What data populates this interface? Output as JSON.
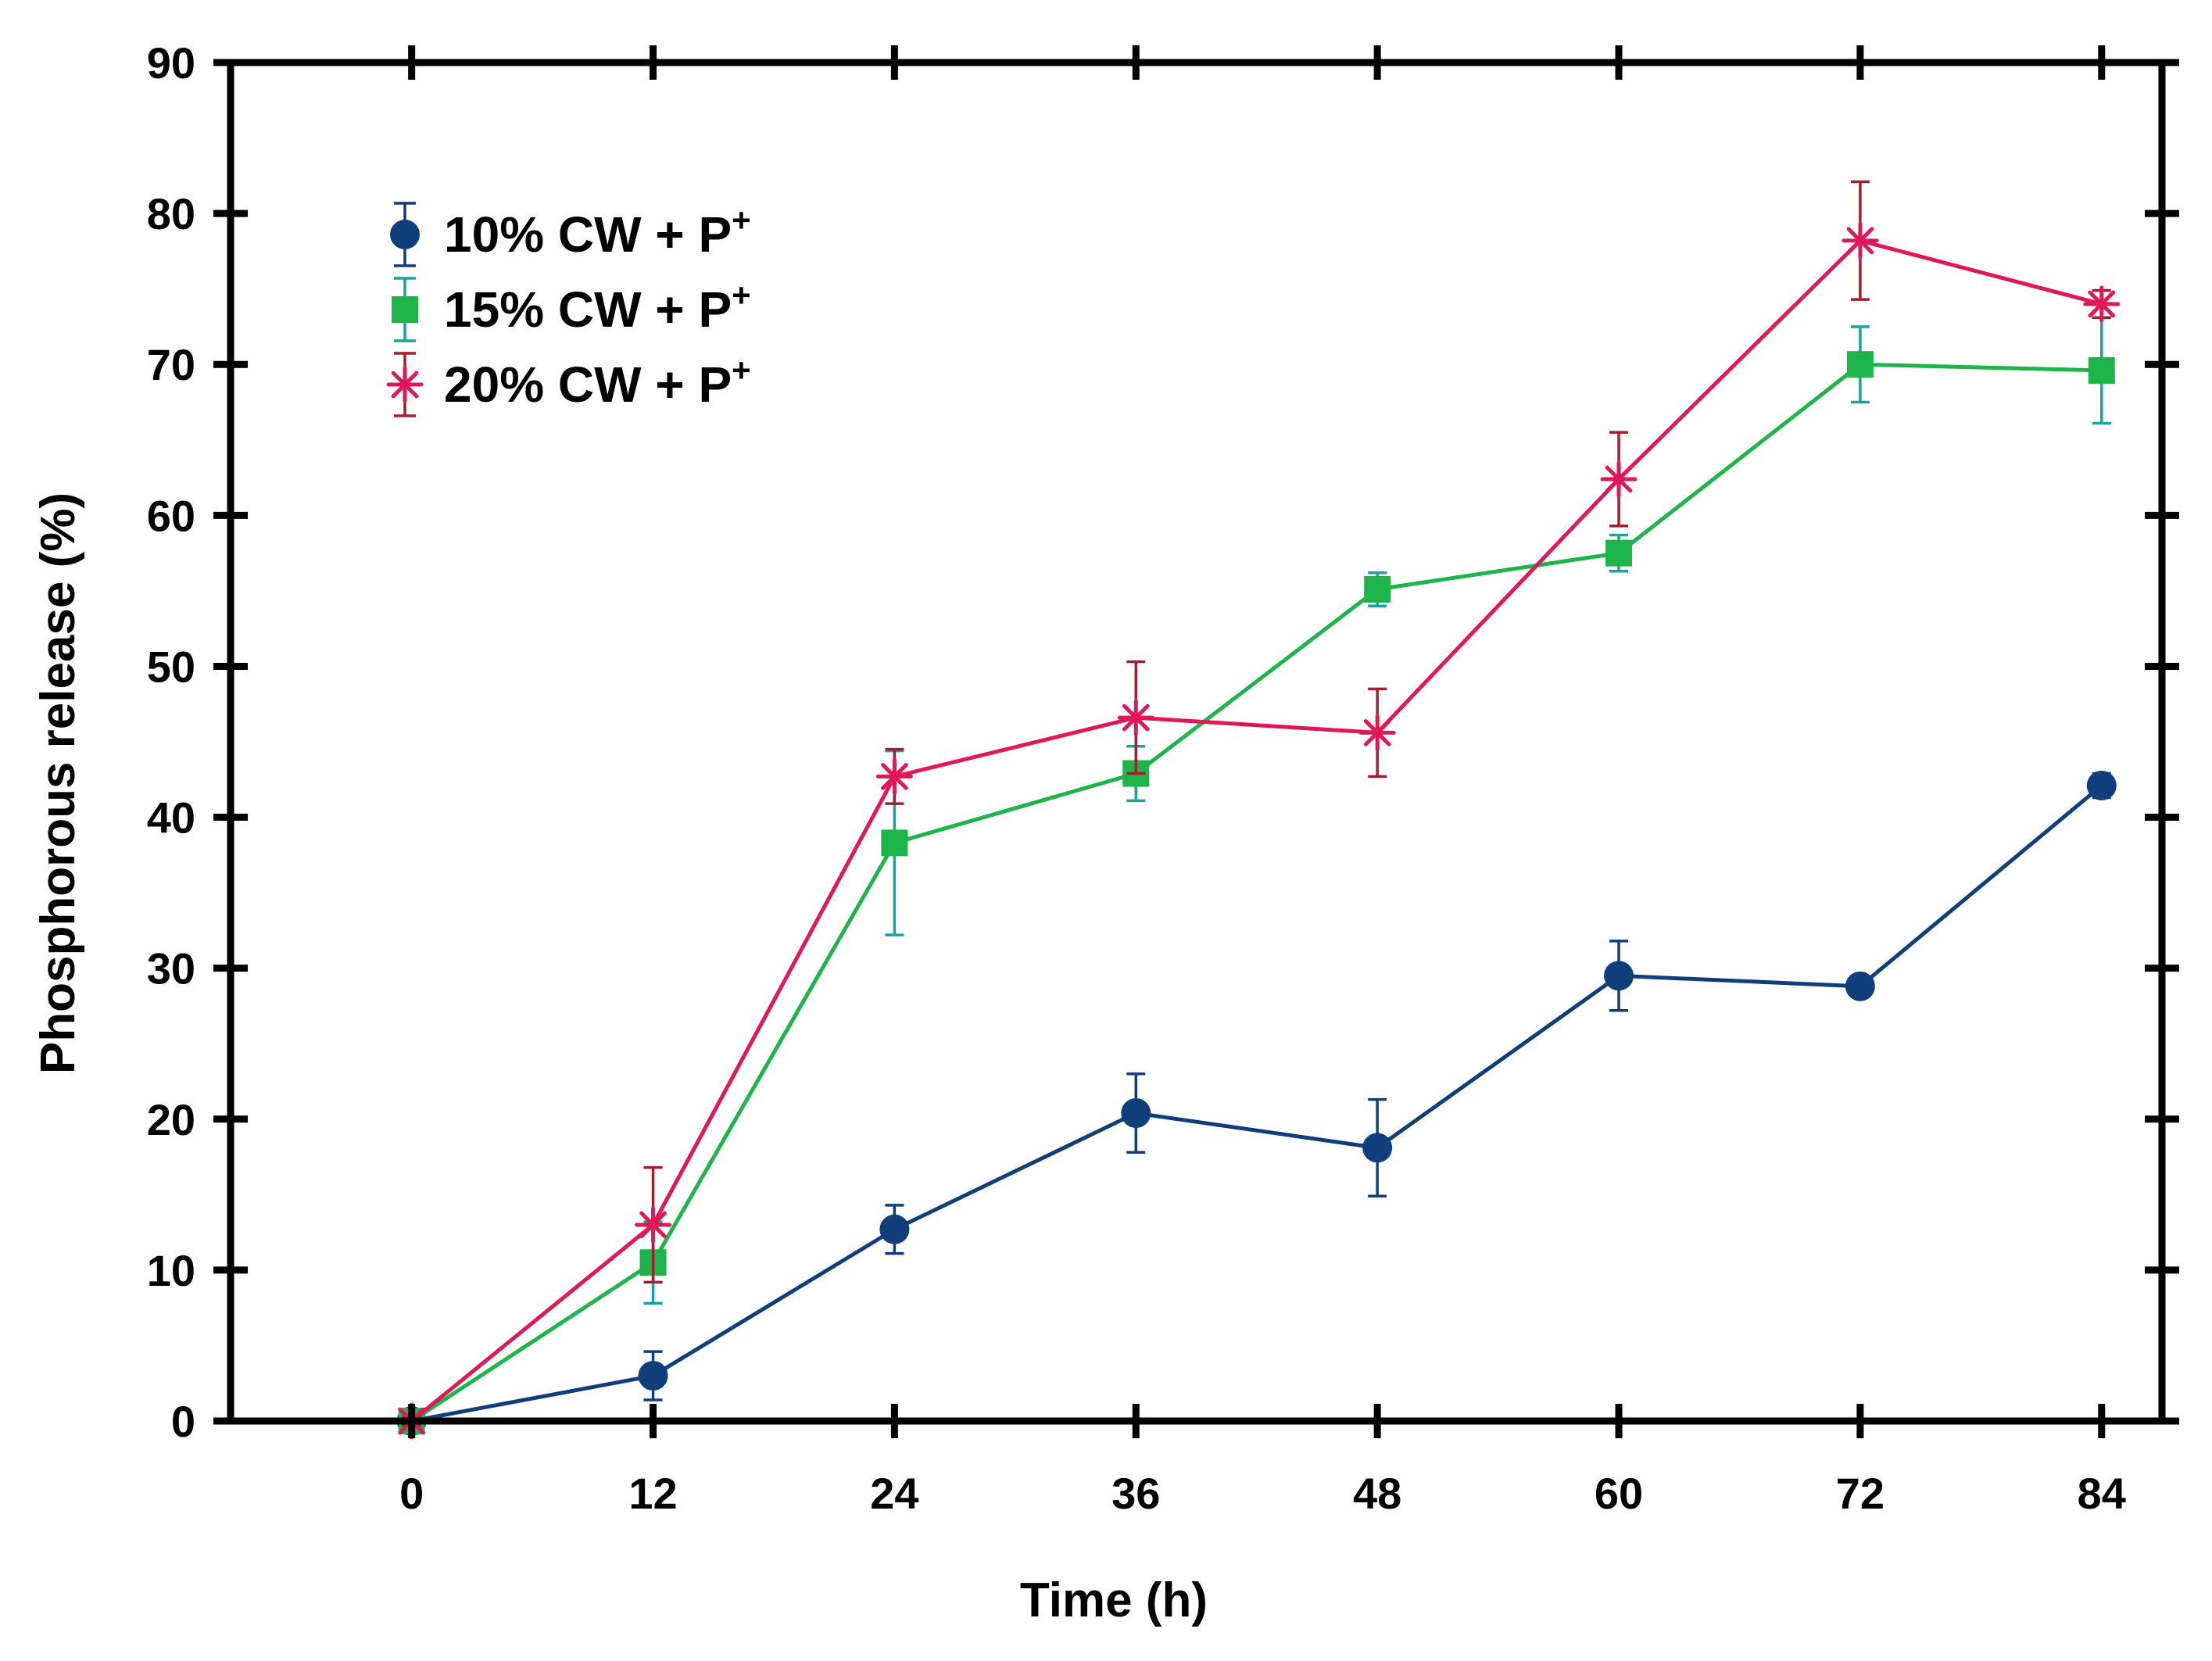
{
  "chart_data": {
    "type": "line",
    "title": "",
    "xlabel": "Time (h)",
    "ylabel": "Phosphorous release (%)",
    "xlim": [
      -9,
      87
    ],
    "ylim": [
      0,
      90
    ],
    "x": [
      0,
      12,
      24,
      36,
      48,
      60,
      72,
      84
    ],
    "xticks": [
      "0",
      "12",
      "24",
      "36",
      "48",
      "60",
      "72",
      "84"
    ],
    "yticks": [
      "0",
      "10",
      "20",
      "30",
      "40",
      "50",
      "60",
      "70",
      "80",
      "90"
    ],
    "grid": false,
    "legend_position": "top-left",
    "series": [
      {
        "name": "10% CW + P",
        "name_sup": "+",
        "color": "#0f3e7a",
        "marker": "circle",
        "values": [
          0,
          3,
          12.7,
          20.4,
          18.1,
          29.5,
          28.8,
          42.1
        ],
        "errors": [
          0.3,
          1.6,
          1.6,
          2.6,
          3.2,
          2.3,
          0.6,
          0.8
        ]
      },
      {
        "name": "15% CW + P",
        "name_sup": "+",
        "color": "#1db54a",
        "error_color": "#1aa39a",
        "marker": "square",
        "values": [
          0,
          10.5,
          38.3,
          42.9,
          55.1,
          57.5,
          70.0,
          69.6
        ],
        "errors": [
          0.3,
          2.7,
          6.1,
          1.8,
          1.1,
          1.2,
          2.5,
          3.5
        ]
      },
      {
        "name": "20% CW + P",
        "name_sup": "+",
        "color": "#e0185a",
        "error_color": "#a31f2e",
        "marker": "asterisk",
        "values": [
          0,
          13.0,
          42.7,
          46.6,
          45.6,
          62.4,
          78.2,
          74.0
        ],
        "errors": [
          0.3,
          3.8,
          1.8,
          3.7,
          2.9,
          3.1,
          3.9,
          0.9
        ]
      }
    ]
  }
}
